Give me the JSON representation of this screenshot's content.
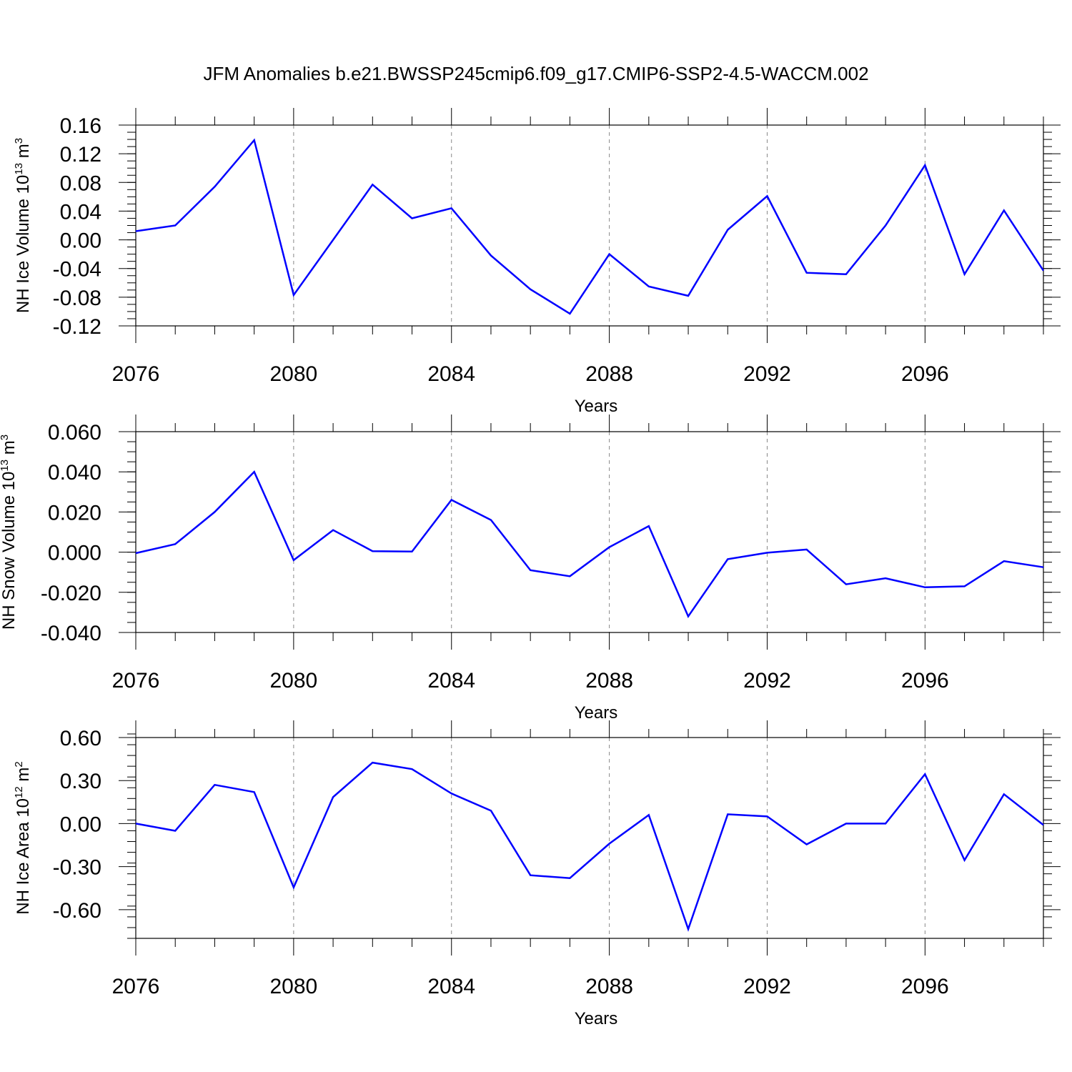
{
  "title": "JFM Anomalies b.e21.BWSSP245cmip6.f09_g17.CMIP6-SSP2-4.5-WACCM.002",
  "line_color": "#0000ff",
  "chart_data": [
    {
      "type": "line",
      "name": "nh-ice-volume",
      "ylabel": {
        "main": "NH Ice Volume 10",
        "exp": "13",
        "unit": " m",
        "unit_exp": "3"
      },
      "xlabel": "Years",
      "xlim": [
        2076,
        2099
      ],
      "ylim": [
        -0.12,
        0.16
      ],
      "xticks": [
        2076,
        2080,
        2084,
        2088,
        2092,
        2096
      ],
      "yticks": [
        -0.12,
        -0.08,
        -0.04,
        0.0,
        0.04,
        0.08,
        0.12,
        0.16
      ],
      "ytick_labels": [
        "-0.12",
        "-0.08",
        "-0.04",
        "0.00",
        "0.04",
        "0.08",
        "0.12",
        "0.16"
      ],
      "yminor_step": 0.01,
      "x": [
        2076,
        2077,
        2078,
        2079,
        2080,
        2081,
        2082,
        2083,
        2084,
        2085,
        2086,
        2087,
        2088,
        2089,
        2090,
        2091,
        2092,
        2093,
        2094,
        2095,
        2096,
        2097,
        2098,
        2099
      ],
      "values": [
        0.012,
        0.02,
        0.074,
        0.139,
        -0.077,
        0.0,
        0.077,
        0.03,
        0.044,
        -0.022,
        -0.069,
        -0.103,
        -0.02,
        -0.065,
        -0.078,
        0.014,
        0.061,
        -0.046,
        -0.048,
        0.02,
        0.104,
        -0.048,
        0.041,
        -0.043
      ]
    },
    {
      "type": "line",
      "name": "nh-snow-volume",
      "ylabel": {
        "main": "NH Snow Volume 10",
        "exp": "13",
        "unit": " m",
        "unit_exp": "3"
      },
      "xlabel": "Years",
      "xlim": [
        2076,
        2099
      ],
      "ylim": [
        -0.04,
        0.06
      ],
      "xticks": [
        2076,
        2080,
        2084,
        2088,
        2092,
        2096
      ],
      "yticks": [
        -0.04,
        -0.02,
        0.0,
        0.02,
        0.04,
        0.06
      ],
      "ytick_labels": [
        "-0.040",
        "-0.020",
        "0.000",
        "0.020",
        "0.040",
        "0.060"
      ],
      "yminor_step": 0.005,
      "x": [
        2076,
        2077,
        2078,
        2079,
        2080,
        2081,
        2082,
        2083,
        2084,
        2085,
        2086,
        2087,
        2088,
        2089,
        2090,
        2091,
        2092,
        2093,
        2094,
        2095,
        2096,
        2097,
        2098,
        2099
      ],
      "values": [
        -0.0005,
        0.004,
        0.02,
        0.04,
        -0.004,
        0.011,
        0.0005,
        0.0003,
        0.026,
        0.016,
        -0.009,
        -0.012,
        0.0025,
        0.013,
        -0.032,
        -0.0035,
        -0.0003,
        0.0013,
        -0.016,
        -0.013,
        -0.0175,
        -0.017,
        -0.0045,
        -0.0075
      ]
    },
    {
      "type": "line",
      "name": "nh-ice-area",
      "ylabel": {
        "main": "NH Ice Area 10",
        "exp": "12",
        "unit": " m",
        "unit_exp": "2"
      },
      "xlabel": "Years",
      "xlim": [
        2076,
        2099
      ],
      "ylim": [
        -0.8,
        0.6
      ],
      "xticks": [
        2076,
        2080,
        2084,
        2088,
        2092,
        2096
      ],
      "yticks": [
        -0.6,
        -0.3,
        0.0,
        0.3,
        0.6
      ],
      "ytick_labels": [
        "-0.60",
        "-0.30",
        "0.00",
        "0.30",
        "0.60"
      ],
      "yminor_step": 0.075,
      "x": [
        2076,
        2077,
        2078,
        2079,
        2080,
        2081,
        2082,
        2083,
        2084,
        2085,
        2086,
        2087,
        2088,
        2089,
        2090,
        2091,
        2092,
        2093,
        2094,
        2095,
        2096,
        2097,
        2098,
        2099
      ],
      "values": [
        0.0,
        -0.05,
        0.27,
        0.22,
        -0.445,
        0.185,
        0.425,
        0.38,
        0.21,
        0.09,
        -0.36,
        -0.38,
        -0.14,
        0.06,
        -0.735,
        0.065,
        0.05,
        -0.145,
        0.0,
        0.0,
        0.345,
        -0.255,
        0.205,
        -0.01
      ]
    }
  ]
}
